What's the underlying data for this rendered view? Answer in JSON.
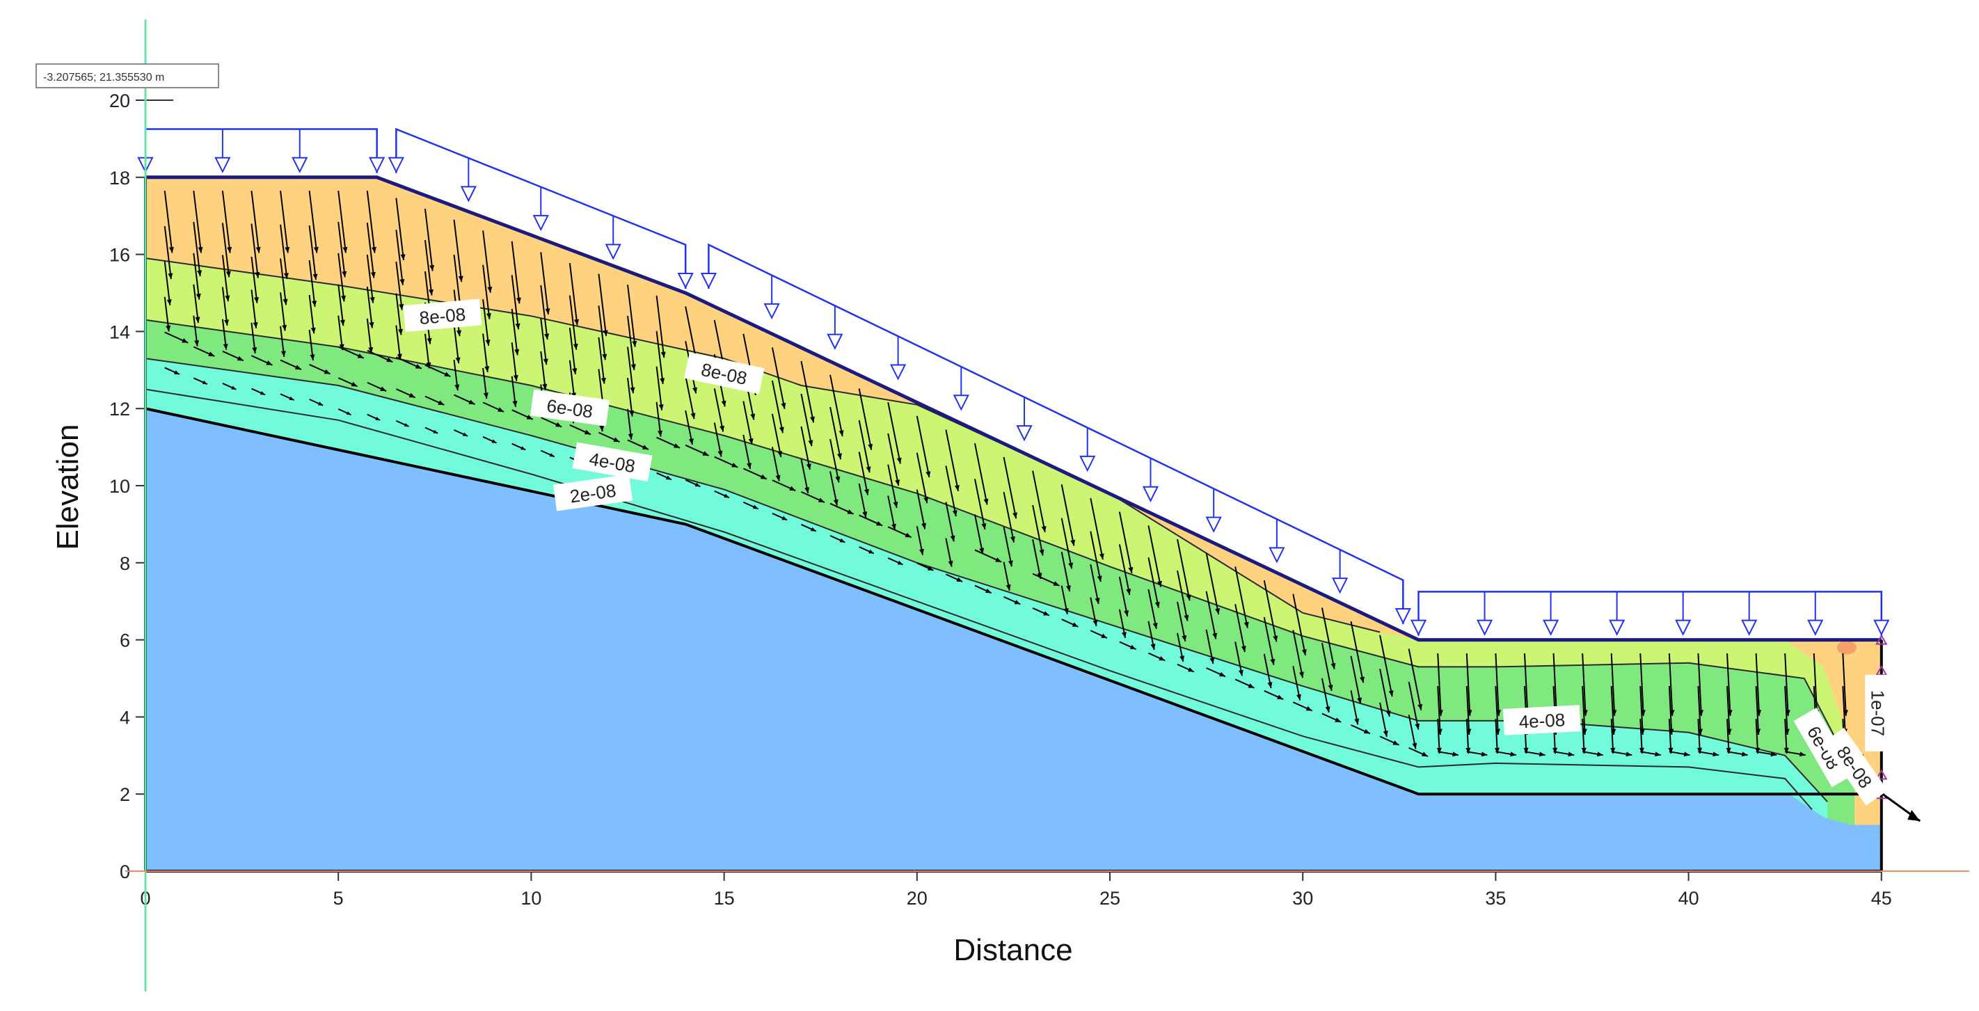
{
  "coordinate_readout": "-3.207565; 21.355530 m",
  "x_axis": {
    "title": "Distance",
    "ticks": [
      0,
      5,
      10,
      15,
      20,
      25,
      30,
      35,
      40,
      45
    ],
    "tick_labels": [
      "0",
      "5",
      "10",
      "15",
      "20",
      "25",
      "30",
      "35",
      "40",
      "45"
    ],
    "range": [
      0,
      45
    ]
  },
  "y_axis": {
    "title": "Elevation",
    "ticks": [
      0,
      2,
      4,
      6,
      8,
      10,
      12,
      14,
      16,
      18,
      20
    ],
    "tick_labels": [
      "0",
      "2",
      "4",
      "6",
      "8",
      "10",
      "12",
      "14",
      "16",
      "18",
      "20"
    ],
    "range": [
      0,
      20
    ]
  },
  "geometry": {
    "ground_surface": [
      [
        0,
        18
      ],
      [
        6,
        18
      ],
      [
        14,
        15
      ],
      [
        33,
        6
      ],
      [
        45,
        6
      ]
    ],
    "layer_boundary": [
      [
        0,
        12
      ],
      [
        14,
        9
      ],
      [
        33,
        2
      ],
      [
        45,
        2
      ]
    ],
    "domain_bottom": 0
  },
  "contours": [
    {
      "level": "8e-08",
      "points": [
        [
          0,
          15.9
        ],
        [
          5,
          15.2
        ],
        [
          10,
          14.4
        ],
        [
          15,
          13.3
        ],
        [
          17,
          12.6
        ],
        [
          20,
          12.1
        ],
        [
          25,
          9.8
        ],
        [
          30,
          6.7
        ],
        [
          32,
          6.2
        ]
      ]
    },
    {
      "level": "6e-08",
      "points": [
        [
          0,
          14.3
        ],
        [
          5,
          13.6
        ],
        [
          10,
          12.6
        ],
        [
          15,
          11.3
        ],
        [
          20,
          9.8
        ],
        [
          25,
          7.9
        ],
        [
          30,
          6.1
        ],
        [
          33,
          5.3
        ],
        [
          35,
          5.3
        ],
        [
          40,
          5.4
        ],
        [
          43,
          5.0
        ],
        [
          44.3,
          2.5
        ]
      ]
    },
    {
      "level": "4e-08",
      "points": [
        [
          0,
          13.3
        ],
        [
          5,
          12.6
        ],
        [
          10,
          11.3
        ],
        [
          15,
          9.9
        ],
        [
          20,
          8.0
        ],
        [
          25,
          6.4
        ],
        [
          30,
          4.8
        ],
        [
          33,
          3.9
        ],
        [
          36,
          3.9
        ],
        [
          40,
          3.6
        ],
        [
          42.5,
          3.0
        ],
        [
          43.6,
          1.8
        ]
      ]
    },
    {
      "level": "2e-08",
      "points": [
        [
          0,
          12.5
        ],
        [
          5,
          11.7
        ],
        [
          10,
          10.3
        ],
        [
          15,
          8.8
        ],
        [
          20,
          7.0
        ],
        [
          25,
          5.2
        ],
        [
          30,
          3.5
        ],
        [
          33,
          2.7
        ],
        [
          35,
          2.8
        ],
        [
          40,
          2.7
        ],
        [
          42.5,
          2.4
        ],
        [
          43.2,
          1.6
        ]
      ]
    }
  ],
  "fills": [
    {
      "band": "orange",
      "color": "#ffd27f"
    },
    {
      "band": "yellow-green",
      "color": "#ccf574"
    },
    {
      "band": "green",
      "color": "#7fe97f"
    },
    {
      "band": "aqua",
      "color": "#72fbdb"
    },
    {
      "band": "blue",
      "color": "#7fbfff"
    },
    {
      "band": "salmon",
      "color": "#f5a26a"
    }
  ],
  "contour_labels": [
    {
      "text": "8e-08",
      "x": 7.7,
      "y": 14.4,
      "angle": -5
    },
    {
      "text": "8e-08",
      "x": 15.0,
      "y": 12.9,
      "angle": 12
    },
    {
      "text": "6e-08",
      "x": 11.0,
      "y": 12.0,
      "angle": 8
    },
    {
      "text": "4e-08",
      "x": 12.1,
      "y": 10.6,
      "angle": 10
    },
    {
      "text": "2e-08",
      "x": 11.6,
      "y": 9.8,
      "angle": -8
    },
    {
      "text": "4e-08",
      "x": 36.2,
      "y": 3.9,
      "angle": -3
    },
    {
      "text": "6e-08",
      "x": 43.5,
      "y": 3.2,
      "angle": 60
    },
    {
      "text": "8e-08",
      "x": 44.3,
      "y": 2.7,
      "angle": 55
    },
    {
      "text": "1e-07",
      "x": 44.9,
      "y": 4.1,
      "angle": 90
    }
  ],
  "colors": {
    "surface_line": "#1a1a80",
    "layer_line": "#000000",
    "load_arrow": "#2233ee",
    "flow_vector": "#000000",
    "crosshair_vertical": "#5fe6a8",
    "crosshair_horizontal": "#ef8a6a",
    "boundary_marker": "#a034a8"
  }
}
